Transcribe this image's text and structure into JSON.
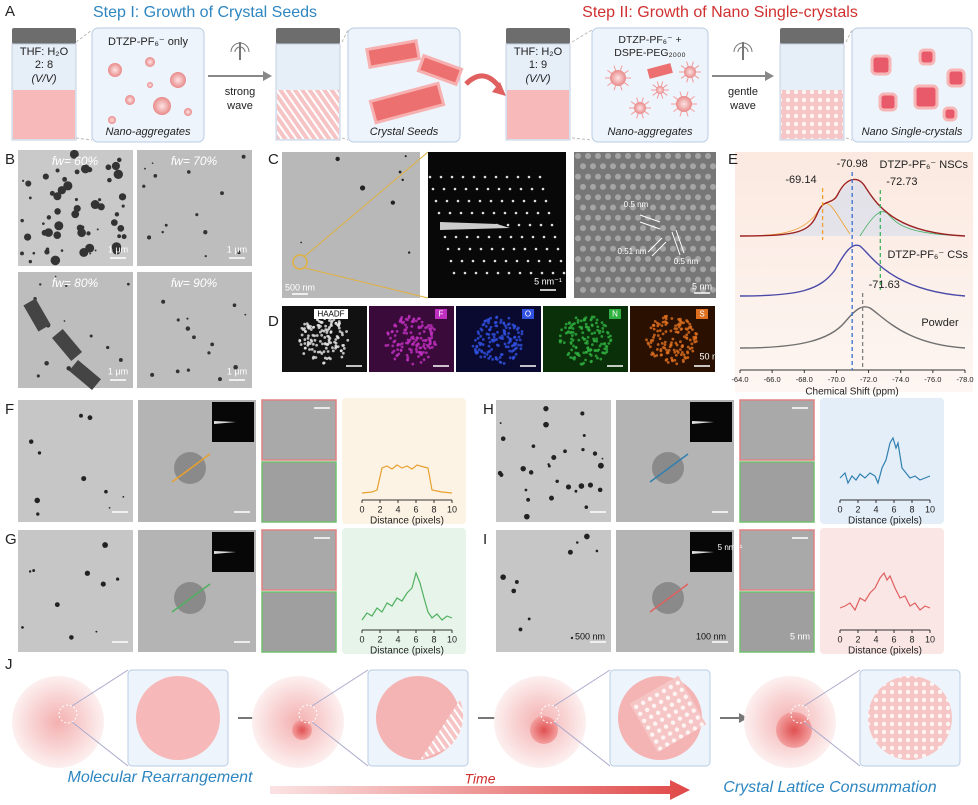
{
  "panel_labels": [
    "A",
    "B",
    "C",
    "D",
    "E",
    "F",
    "G",
    "H",
    "I",
    "J"
  ],
  "a": {
    "step1_title": "Step I: Growth of Crystal Seeds",
    "step2_title": "Step II: Growth of Nano Single-crystals",
    "vial1": {
      "solvent": "THF: H₂O",
      "ratio": "2: 8",
      "unit": "(V/V)"
    },
    "box1": {
      "label": "DTZP-PF₆⁻ only",
      "caption": "Nano-aggregates"
    },
    "arrow1": [
      "strong",
      "wave"
    ],
    "box2": {
      "caption": "Crystal Seeds"
    },
    "vial3": {
      "solvent": "THF: H₂O",
      "ratio": "1: 9",
      "unit": "(V/V)"
    },
    "box3": {
      "label": [
        "DTZP-PF₆⁻ +",
        "DSPE-PEG₂₀₀₀"
      ],
      "caption": "Nano-aggregates"
    },
    "arrow2": [
      "gentle",
      "wave"
    ],
    "box4": {
      "caption": "Nano Single-crystals"
    }
  },
  "b": {
    "images": [
      {
        "label": "fw= 60%",
        "scale": "1 μm"
      },
      {
        "label": "fw= 70%",
        "scale": "1 μm"
      },
      {
        "label": "fw= 80%",
        "scale": "1 μm"
      },
      {
        "label": "fw= 90%",
        "scale": "1 μm"
      }
    ]
  },
  "c": {
    "scales": [
      "500 nm",
      "5 nm⁻¹",
      "5 nm"
    ],
    "spacings": [
      "0.5 nm",
      "0.51 nm",
      "0.5 nm"
    ]
  },
  "d": {
    "channels": [
      "HAADF",
      "F",
      "O",
      "N",
      "S"
    ],
    "scale": "50 nm"
  },
  "e": {
    "peaks": [
      -69.14,
      -70.98,
      -72.73,
      -71.63
    ],
    "peak_colors": [
      "#f0a030",
      "#3b6fd0",
      "#40b060",
      "#808080"
    ],
    "series_labels": [
      "DTZP-PF₆⁻ NSCs",
      "DTZP-PF₆⁻ CSs",
      "Powder"
    ],
    "xlabel": "Chemical Shift (ppm)",
    "xlim": [
      -64,
      -78
    ],
    "xticks": [
      {
        "value": -64,
        "label": "-64.0"
      },
      {
        "value": -66,
        "label": "-66.0"
      },
      {
        "value": -68,
        "label": "-68.0"
      },
      {
        "value": -70,
        "label": "-70.0"
      },
      {
        "value": -72,
        "label": "-72.0"
      },
      {
        "value": -74,
        "label": "-74.0"
      },
      {
        "value": -76,
        "label": "-76.0"
      },
      {
        "value": -78,
        "label": "-78.0"
      }
    ]
  },
  "profiles": [
    {
      "xlabel": "Distance (pixels)",
      "xlim": [
        0,
        10
      ],
      "xticks": [
        0,
        2,
        4,
        6,
        8,
        10
      ],
      "color": "#e8a030"
    },
    {
      "xlabel": "Distance (pixels)",
      "xlim": [
        0,
        10
      ],
      "xticks": [
        0,
        2,
        4,
        6,
        8,
        10
      ],
      "color": "#50b060"
    },
    {
      "xlabel": "Distance (pixels)",
      "xlim": [
        0,
        10
      ],
      "xticks": [
        0,
        2,
        4,
        6,
        8,
        10
      ],
      "color": "#3080b0"
    },
    {
      "xlabel": "Distance (pixels)",
      "xlim": [
        0,
        10
      ],
      "xticks": [
        0,
        2,
        4,
        6,
        8,
        10
      ],
      "color": "#e06060"
    }
  ],
  "i_scales": [
    "500 nm",
    "100 nm",
    "5 nm⁻¹",
    "5 nm"
  ],
  "j": {
    "left": "Molecular Rearrangement",
    "middle": "Time",
    "right": "Crystal Lattice Consummation"
  }
}
